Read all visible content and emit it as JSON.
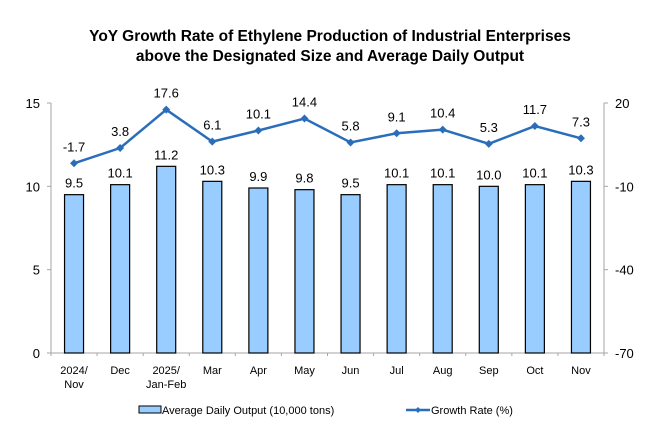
{
  "chart_data": {
    "type": "bar",
    "title": [
      "YoY Growth Rate of Ethylene Production of Industrial Enterprises",
      "above the Designated Size and Average Daily Output"
    ],
    "categories": [
      [
        "2024/",
        "Nov"
      ],
      [
        "Dec"
      ],
      [
        "2025/",
        "Jan-Feb"
      ],
      [
        "Mar"
      ],
      [
        "Apr"
      ],
      [
        "May"
      ],
      [
        "Jun"
      ],
      [
        "Jul"
      ],
      [
        "Aug"
      ],
      [
        "Sep"
      ],
      [
        "Oct"
      ],
      [
        "Nov"
      ]
    ],
    "series": [
      {
        "name": "Average Daily Output (10,000 tons)",
        "type": "bar",
        "axis": "left",
        "color": "#99CCFF",
        "edge_color": "#000000",
        "values": [
          9.5,
          10.1,
          11.2,
          10.3,
          9.9,
          9.8,
          9.5,
          10.1,
          10.1,
          10.0,
          10.1,
          10.3
        ],
        "labels": [
          "9.5",
          "10.1",
          "11.2",
          "10.3",
          "9.9",
          "9.8",
          "9.5",
          "10.1",
          "10.1",
          "10.0",
          "10.1",
          "10.3"
        ]
      },
      {
        "name": "Growth Rate (%)",
        "type": "line",
        "axis": "right",
        "color": "#2A6EBB",
        "marker": "diamond",
        "values": [
          -1.7,
          3.8,
          17.6,
          6.1,
          10.1,
          14.4,
          5.8,
          9.1,
          10.4,
          5.3,
          11.7,
          7.3
        ],
        "labels": [
          "-1.7",
          "3.8",
          "17.6",
          "6.1",
          "10.1",
          "14.4",
          "5.8",
          "9.1",
          "10.4",
          "5.3",
          "11.7",
          "7.3"
        ]
      }
    ],
    "left_axis": {
      "label": "",
      "ylim": [
        0,
        15
      ],
      "ticks": [
        0,
        5,
        10,
        15
      ]
    },
    "right_axis": {
      "label": "",
      "ylim": [
        -70,
        20
      ],
      "ticks": [
        -70,
        -40,
        -10,
        20
      ]
    },
    "xlabel": "",
    "grid": false,
    "legend": {
      "placement": "bottom",
      "entries": [
        "Average Daily Output (10,000 tons)",
        "Growth Rate (%)"
      ]
    }
  }
}
